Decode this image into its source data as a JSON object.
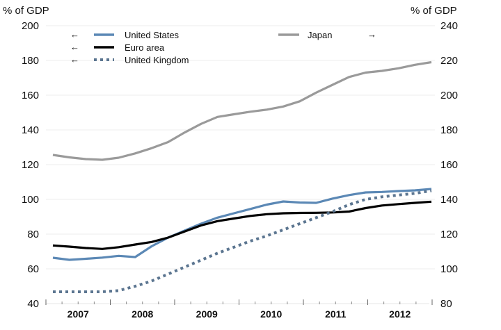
{
  "chart_data": {
    "type": "line",
    "title": "",
    "left_axis": {
      "label": "% of GDP",
      "range": [
        40,
        200
      ],
      "ticks": [
        40,
        60,
        80,
        100,
        120,
        140,
        160,
        180,
        200
      ]
    },
    "right_axis": {
      "label": "% of GDP",
      "range": [
        80,
        240
      ],
      "ticks": [
        80,
        100,
        120,
        140,
        160,
        180,
        200,
        220,
        240
      ]
    },
    "x_axis": {
      "years": [
        "2007",
        "2008",
        "2009",
        "2010",
        "2011",
        "2012"
      ],
      "frequency": "quarterly",
      "x": [
        "2007Q1",
        "2007Q2",
        "2007Q3",
        "2007Q4",
        "2008Q1",
        "2008Q2",
        "2008Q3",
        "2008Q4",
        "2009Q1",
        "2009Q2",
        "2009Q3",
        "2009Q4",
        "2010Q1",
        "2010Q2",
        "2010Q3",
        "2010Q4",
        "2011Q1",
        "2011Q2",
        "2011Q3",
        "2011Q4",
        "2012Q1",
        "2012Q2",
        "2012Q3",
        "2012Q4"
      ]
    },
    "grid": true,
    "legend_position": "top",
    "series": [
      {
        "name": "United States",
        "axis": "left",
        "arrow": "←",
        "color": "#5b88b5",
        "style": "solid",
        "values": [
          66.4,
          65.2,
          65.8,
          66.5,
          67.5,
          66.8,
          73.0,
          78.0,
          82.0,
          86.0,
          89.5,
          92.0,
          94.5,
          97.0,
          98.8,
          98.2,
          98.0,
          100.5,
          102.5,
          104.0,
          104.3,
          104.8,
          105.2,
          106.0
        ]
      },
      {
        "name": "Euro area",
        "axis": "left",
        "arrow": "←",
        "color": "#000000",
        "style": "solid",
        "values": [
          73.5,
          72.8,
          72.0,
          71.5,
          72.5,
          74.0,
          75.5,
          78.0,
          81.5,
          85.0,
          87.5,
          89.0,
          90.5,
          91.5,
          92.0,
          92.2,
          92.3,
          92.5,
          93.0,
          95.0,
          96.5,
          97.3,
          98.0,
          98.7
        ]
      },
      {
        "name": "United Kingdom",
        "axis": "left",
        "arrow": "←",
        "color": "#5b7590",
        "style": "dotted",
        "values": [
          46.8,
          46.8,
          46.8,
          46.8,
          47.5,
          50.0,
          53.0,
          57.0,
          61.0,
          65.0,
          69.0,
          72.5,
          76.0,
          79.0,
          82.5,
          86.0,
          89.5,
          93.0,
          97.0,
          100.0,
          101.5,
          102.5,
          103.5,
          105.0
        ]
      },
      {
        "name": "Japan",
        "axis": "right",
        "arrow": "→",
        "color": "#9a9a9a",
        "style": "solid",
        "values": [
          165.6,
          164.2,
          163.2,
          162.8,
          164.0,
          166.5,
          169.5,
          173.0,
          178.5,
          183.5,
          187.5,
          189.0,
          190.5,
          191.7,
          193.5,
          196.5,
          201.5,
          206.0,
          210.5,
          213.0,
          214.0,
          215.5,
          217.5,
          219.0
        ]
      }
    ]
  }
}
